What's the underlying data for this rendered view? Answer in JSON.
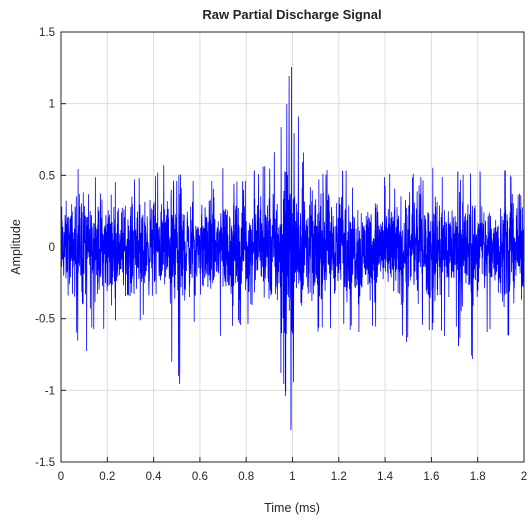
{
  "chart_data": {
    "type": "line",
    "title": "Raw Partial Discharge Signal",
    "xlabel": "Time (ms)",
    "ylabel": "Amplitude",
    "xlim": [
      0,
      2
    ],
    "ylim": [
      -1.5,
      1.5
    ],
    "x_ticks": [
      0,
      0.2,
      0.4,
      0.6,
      0.8,
      1,
      1.2,
      1.4,
      1.6,
      1.8,
      2
    ],
    "x_tick_labels": [
      "0",
      "0.2",
      "0.4",
      "0.6",
      "0.8",
      "1",
      "1.2",
      "1.4",
      "1.6",
      "1.8",
      "2"
    ],
    "y_ticks": [
      -1.5,
      -1,
      -0.5,
      0,
      0.5,
      1,
      1.5
    ],
    "y_tick_labels": [
      "-1.5",
      "-1",
      "-0.5",
      "0",
      "0.5",
      "1",
      "1.5"
    ],
    "grid": true,
    "line_color": "#0000ff",
    "series": [
      {
        "x": [
          0,
          0.05,
          0.1,
          0.15,
          0.2,
          0.25,
          0.3,
          0.35,
          0.4,
          0.45,
          0.5,
          0.55,
          0.6,
          0.65,
          0.7,
          0.75,
          0.8,
          0.85,
          0.9,
          0.93,
          0.96,
          0.98,
          0.99,
          1.0,
          1.01,
          1.02,
          1.04,
          1.07,
          1.1,
          1.15,
          1.2,
          1.25,
          1.3,
          1.35,
          1.4,
          1.45,
          1.5,
          1.55,
          1.6,
          1.65,
          1.7,
          1.75,
          1.8,
          1.85,
          1.9,
          1.95,
          2.0
        ],
        "upper_envelope": [
          0.5,
          0.5,
          0.7,
          0.5,
          0.6,
          0.5,
          0.5,
          0.55,
          0.5,
          0.6,
          0.5,
          0.55,
          0.5,
          0.5,
          0.6,
          0.5,
          0.5,
          0.55,
          0.6,
          0.7,
          0.9,
          1.1,
          1.3,
          1.32,
          1.2,
          1.0,
          0.7,
          0.6,
          0.5,
          0.55,
          0.6,
          0.5,
          0.55,
          0.5,
          0.55,
          0.5,
          0.55,
          0.5,
          0.6,
          0.5,
          0.55,
          0.5,
          0.55,
          0.5,
          0.6,
          0.55,
          0.5
        ],
        "lower_envelope": [
          -0.5,
          -0.6,
          -0.8,
          -0.55,
          -0.6,
          -0.5,
          -0.6,
          -0.55,
          -0.6,
          -0.6,
          -1.1,
          -0.6,
          -0.55,
          -0.6,
          -0.7,
          -0.6,
          -0.6,
          -0.6,
          -0.7,
          -0.8,
          -1.0,
          -1.2,
          -1.3,
          -1.35,
          -1.25,
          -1.0,
          -0.8,
          -0.7,
          -0.6,
          -0.65,
          -0.6,
          -0.6,
          -0.65,
          -0.6,
          -0.6,
          -0.65,
          -0.7,
          -0.65,
          -0.6,
          -0.65,
          -0.6,
          -0.9,
          -0.7,
          -0.6,
          -0.6,
          -0.65,
          -0.6
        ]
      }
    ]
  }
}
